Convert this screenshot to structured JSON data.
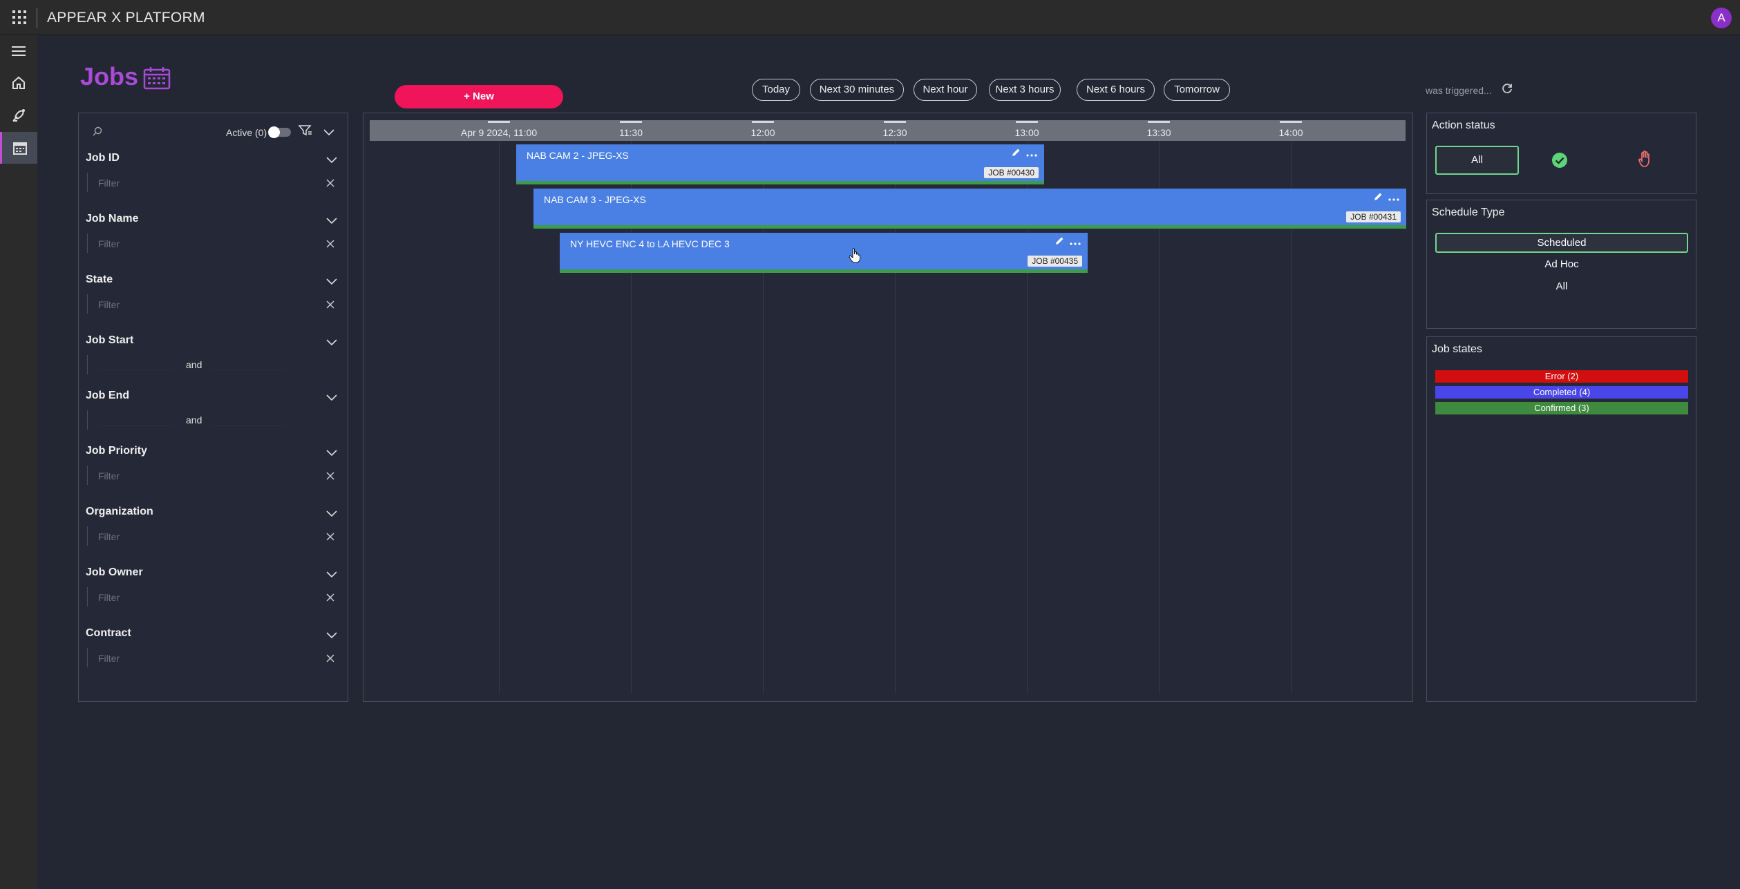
{
  "app": {
    "title": "APPEAR X PLATFORM",
    "avatar_initial": "A"
  },
  "page": {
    "title": "Jobs",
    "new_button": "+ New"
  },
  "ranges": [
    "Today",
    "Next 30 minutes",
    "Next hour",
    "Next 3 hours",
    "Next 6 hours",
    "Tomorrow"
  ],
  "status": {
    "triggered_text": "was triggered..."
  },
  "filters": {
    "active_label": "Active (0)",
    "placeholder": "Filter",
    "and_label": "and",
    "sections": [
      {
        "title": "Job ID"
      },
      {
        "title": "Job Name"
      },
      {
        "title": "State"
      },
      {
        "title": "Job Start"
      },
      {
        "title": "Job End"
      },
      {
        "title": "Job Priority"
      },
      {
        "title": "Organization"
      },
      {
        "title": "Job Owner"
      },
      {
        "title": "Contract"
      }
    ]
  },
  "timeline": {
    "ticks": [
      "Apr 9 2024, 11:00",
      "11:30",
      "12:00",
      "12:30",
      "13:00",
      "13:30",
      "14:00"
    ],
    "jobs": [
      {
        "name": "NAB CAM 2 - JPEG-XS",
        "id": "JOB #00430",
        "state_color": "#3e9b4a"
      },
      {
        "name": "NAB CAM 3 - JPEG-XS",
        "id": "JOB #00431",
        "state_color": "#3e9b4a"
      },
      {
        "name": "NY HEVC ENC 4 to LA HEVC DEC 3",
        "id": "JOB #00435",
        "state_color": "#3e9b4a"
      }
    ]
  },
  "action_status": {
    "title": "Action status",
    "all_label": "All"
  },
  "schedule_type": {
    "title": "Schedule Type",
    "options": [
      "Scheduled",
      "Ad Hoc",
      "All"
    ],
    "selected": "Scheduled"
  },
  "job_states": {
    "title": "Job states",
    "items": [
      {
        "label": "Error (2)",
        "color": "#d20f0f"
      },
      {
        "label": "Completed (4)",
        "color": "#4a45e8"
      },
      {
        "label": "Confirmed (3)",
        "color": "#3e8a3e"
      }
    ]
  },
  "colors": {
    "accent": "#a94bd6",
    "new_button": "#f0145a",
    "job_bar": "#4a7fe3",
    "selected_border": "#6fd88a"
  }
}
